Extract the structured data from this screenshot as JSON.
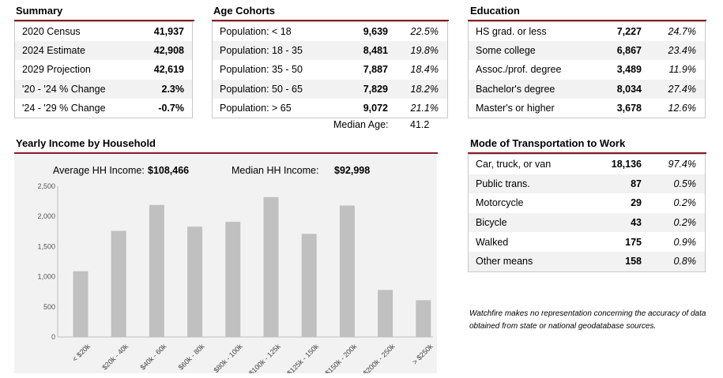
{
  "summary": {
    "title": "Summary",
    "rows": [
      {
        "label": "2020 Census",
        "value": "41,937"
      },
      {
        "label": "2024 Estimate",
        "value": "42,908"
      },
      {
        "label": "2029 Projection",
        "value": "42,619"
      },
      {
        "label": "'20 - '24 % Change",
        "value": "2.3%"
      },
      {
        "label": "'24 - '29 % Change",
        "value": "-0.7%"
      }
    ]
  },
  "age": {
    "title": "Age Cohorts",
    "rows": [
      {
        "label": "Population: < 18",
        "value": "9,639",
        "pct": "22.5%"
      },
      {
        "label": "Population: 18 - 35",
        "value": "8,481",
        "pct": "19.8%"
      },
      {
        "label": "Population: 35 - 50",
        "value": "7,887",
        "pct": "18.4%"
      },
      {
        "label": "Population: 50 - 65",
        "value": "7,829",
        "pct": "18.2%"
      },
      {
        "label": "Population: > 65",
        "value": "9,072",
        "pct": "21.1%"
      }
    ],
    "median_label": "Median Age:",
    "median_value": "41.2"
  },
  "education": {
    "title": "Education",
    "rows": [
      {
        "label": "HS grad. or less",
        "value": "7,227",
        "pct": "24.7%"
      },
      {
        "label": "Some college",
        "value": "6,867",
        "pct": "23.4%"
      },
      {
        "label": "Assoc./prof. degree",
        "value": "3,489",
        "pct": "11.9%"
      },
      {
        "label": "Bachelor's degree",
        "value": "8,034",
        "pct": "27.4%"
      },
      {
        "label": "Master's or higher",
        "value": "3,678",
        "pct": "12.6%"
      }
    ]
  },
  "transport": {
    "title": "Mode of Transportation to Work",
    "rows": [
      {
        "label": "Car, truck, or van",
        "value": "18,136",
        "pct": "97.4%"
      },
      {
        "label": "Public trans.",
        "value": "87",
        "pct": "0.5%"
      },
      {
        "label": "Motorcycle",
        "value": "29",
        "pct": "0.2%"
      },
      {
        "label": "Bicycle",
        "value": "43",
        "pct": "0.2%"
      },
      {
        "label": "Walked",
        "value": "175",
        "pct": "0.9%"
      },
      {
        "label": "Other means",
        "value": "158",
        "pct": "0.8%"
      }
    ]
  },
  "income": {
    "title": "Yearly Income by Household",
    "avg_label": "Average HH Income:",
    "avg_value": "$108,466",
    "median_label": "Median HH Income:",
    "median_value": "$92,998"
  },
  "disclaimer": "Watchfire makes no representation concerning the accuracy of data obtained from state or national geodatabase sources.",
  "colors": {
    "accent": "#8b1a22",
    "bar": "#c0c0c0",
    "alt_row": "#f2f2f2"
  },
  "chart_data": {
    "type": "bar",
    "title": "Yearly Income by Household",
    "categories": [
      "< $20k",
      "$20k - 40k",
      "$40k - 60k",
      "$60k - 80k",
      "$80k - 100k",
      "$100k - 125k",
      "$125k - 150k",
      "$150k - 200k",
      "$200k - 250k",
      "> $250k"
    ],
    "values": [
      1090,
      1760,
      2190,
      1830,
      1910,
      2320,
      1710,
      2180,
      780,
      610
    ],
    "yticks": [
      "0",
      "500",
      "1,000",
      "1,500",
      "2,000",
      "2,500"
    ],
    "ylim": [
      0,
      2500
    ],
    "xlabel": "",
    "ylabel": ""
  }
}
